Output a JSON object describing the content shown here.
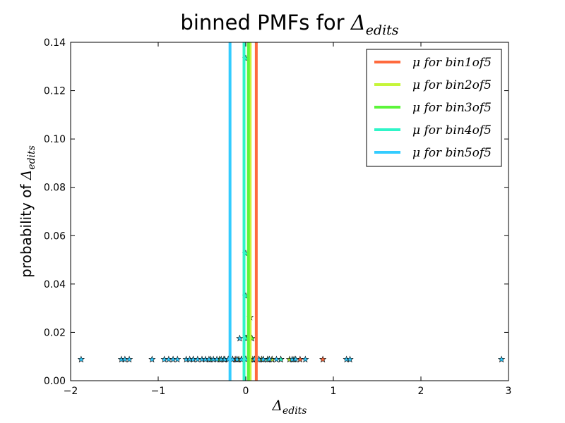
{
  "chart_data": {
    "type": "scatter",
    "title_prefix": "binned PMFs for ",
    "title_symbol": "Δ",
    "title_subscript": "edits",
    "xlabel_symbol": "Δ",
    "xlabel_subscript": "edits",
    "ylabel_prefix": "probability of ",
    "ylabel_symbol": "Δ",
    "ylabel_subscript": "edits",
    "xlim": [
      -2,
      3
    ],
    "ylim": [
      0,
      0.14
    ],
    "xticks": [
      -2,
      -1,
      0,
      1,
      2,
      3
    ],
    "xtick_labels": [
      "−2",
      "−1",
      "0",
      "1",
      "2",
      "3"
    ],
    "yticks": [
      0,
      0.02,
      0.04,
      0.06,
      0.08,
      0.1,
      0.12,
      0.14
    ],
    "ytick_labels": [
      "0.00",
      "0.02",
      "0.04",
      "0.06",
      "0.08",
      "0.10",
      "0.12",
      "0.14"
    ],
    "grid": false,
    "legend_position": "top-right",
    "series": [
      {
        "name": "μ for bin1of5",
        "color": "#ff6a3d",
        "mean": 0.12,
        "points": [
          [
            -0.12,
            0.0088
          ],
          [
            -0.05,
            0.0088
          ],
          [
            0.0,
            0.0088
          ],
          [
            0.05,
            0.0088
          ],
          [
            0.12,
            0.0088
          ],
          [
            0.2,
            0.0088
          ],
          [
            0.3,
            0.0088
          ],
          [
            0.4,
            0.0088
          ],
          [
            0.62,
            0.0088
          ],
          [
            0.88,
            0.0088
          ]
        ]
      },
      {
        "name": "μ for bin2of5",
        "color": "#c6f53a",
        "mean": 0.05,
        "points": [
          [
            -0.2,
            0.0088
          ],
          [
            -0.08,
            0.0088
          ],
          [
            0.0,
            0.0088
          ],
          [
            0.08,
            0.0088
          ],
          [
            0.18,
            0.0088
          ],
          [
            0.3,
            0.0088
          ],
          [
            0.5,
            0.0088
          ],
          [
            0.05,
            0.0262
          ]
        ]
      },
      {
        "name": "μ for bin3of5",
        "color": "#5cf53a",
        "mean": 0.03,
        "points": [
          [
            -0.3,
            0.0088
          ],
          [
            -0.15,
            0.0088
          ],
          [
            -0.05,
            0.0088
          ],
          [
            0.05,
            0.0088
          ],
          [
            0.15,
            0.0088
          ],
          [
            0.25,
            0.0088
          ],
          [
            0.07,
            0.0175
          ],
          [
            0.01,
            0.0175
          ]
        ]
      },
      {
        "name": "μ for bin4of5",
        "color": "#2ff5c8",
        "mean": -0.02,
        "points": [
          [
            -0.6,
            0.0088
          ],
          [
            -0.4,
            0.0088
          ],
          [
            -0.25,
            0.0088
          ],
          [
            -0.1,
            0.0088
          ],
          [
            0.0,
            0.0088
          ],
          [
            0.1,
            0.0088
          ],
          [
            0.25,
            0.0088
          ],
          [
            0.4,
            0.0088
          ],
          [
            0.55,
            0.0088
          ],
          [
            0.0,
            0.0175
          ],
          [
            0.0,
            0.035
          ],
          [
            0.0,
            0.0526
          ],
          [
            0.0,
            0.1333
          ]
        ]
      },
      {
        "name": "μ for bin5of5",
        "color": "#33ccff",
        "mean": -0.18,
        "points": [
          [
            -1.88,
            0.0088
          ],
          [
            -1.42,
            0.0088
          ],
          [
            -1.38,
            0.0088
          ],
          [
            -1.33,
            0.0088
          ],
          [
            -1.07,
            0.0088
          ],
          [
            -0.93,
            0.0088
          ],
          [
            -0.88,
            0.0088
          ],
          [
            -0.83,
            0.0088
          ],
          [
            -0.78,
            0.0088
          ],
          [
            -0.68,
            0.0088
          ],
          [
            -0.64,
            0.0088
          ],
          [
            -0.6,
            0.0088
          ],
          [
            -0.55,
            0.0088
          ],
          [
            -0.5,
            0.0088
          ],
          [
            -0.46,
            0.0088
          ],
          [
            -0.42,
            0.0088
          ],
          [
            -0.37,
            0.0088
          ],
          [
            -0.33,
            0.0088
          ],
          [
            -0.28,
            0.0088
          ],
          [
            -0.24,
            0.0088
          ],
          [
            -0.2,
            0.0088
          ],
          [
            -0.15,
            0.0088
          ],
          [
            -0.1,
            0.0088
          ],
          [
            -0.05,
            0.0088
          ],
          [
            0.0,
            0.0088
          ],
          [
            0.05,
            0.0088
          ],
          [
            0.1,
            0.0088
          ],
          [
            0.15,
            0.0088
          ],
          [
            0.2,
            0.0088
          ],
          [
            0.27,
            0.0088
          ],
          [
            0.35,
            0.0088
          ],
          [
            0.53,
            0.0088
          ],
          [
            0.57,
            0.0088
          ],
          [
            0.68,
            0.0088
          ],
          [
            1.15,
            0.0088
          ],
          [
            1.19,
            0.0088
          ],
          [
            2.92,
            0.0088
          ],
          [
            -0.07,
            0.0175
          ]
        ]
      }
    ]
  }
}
